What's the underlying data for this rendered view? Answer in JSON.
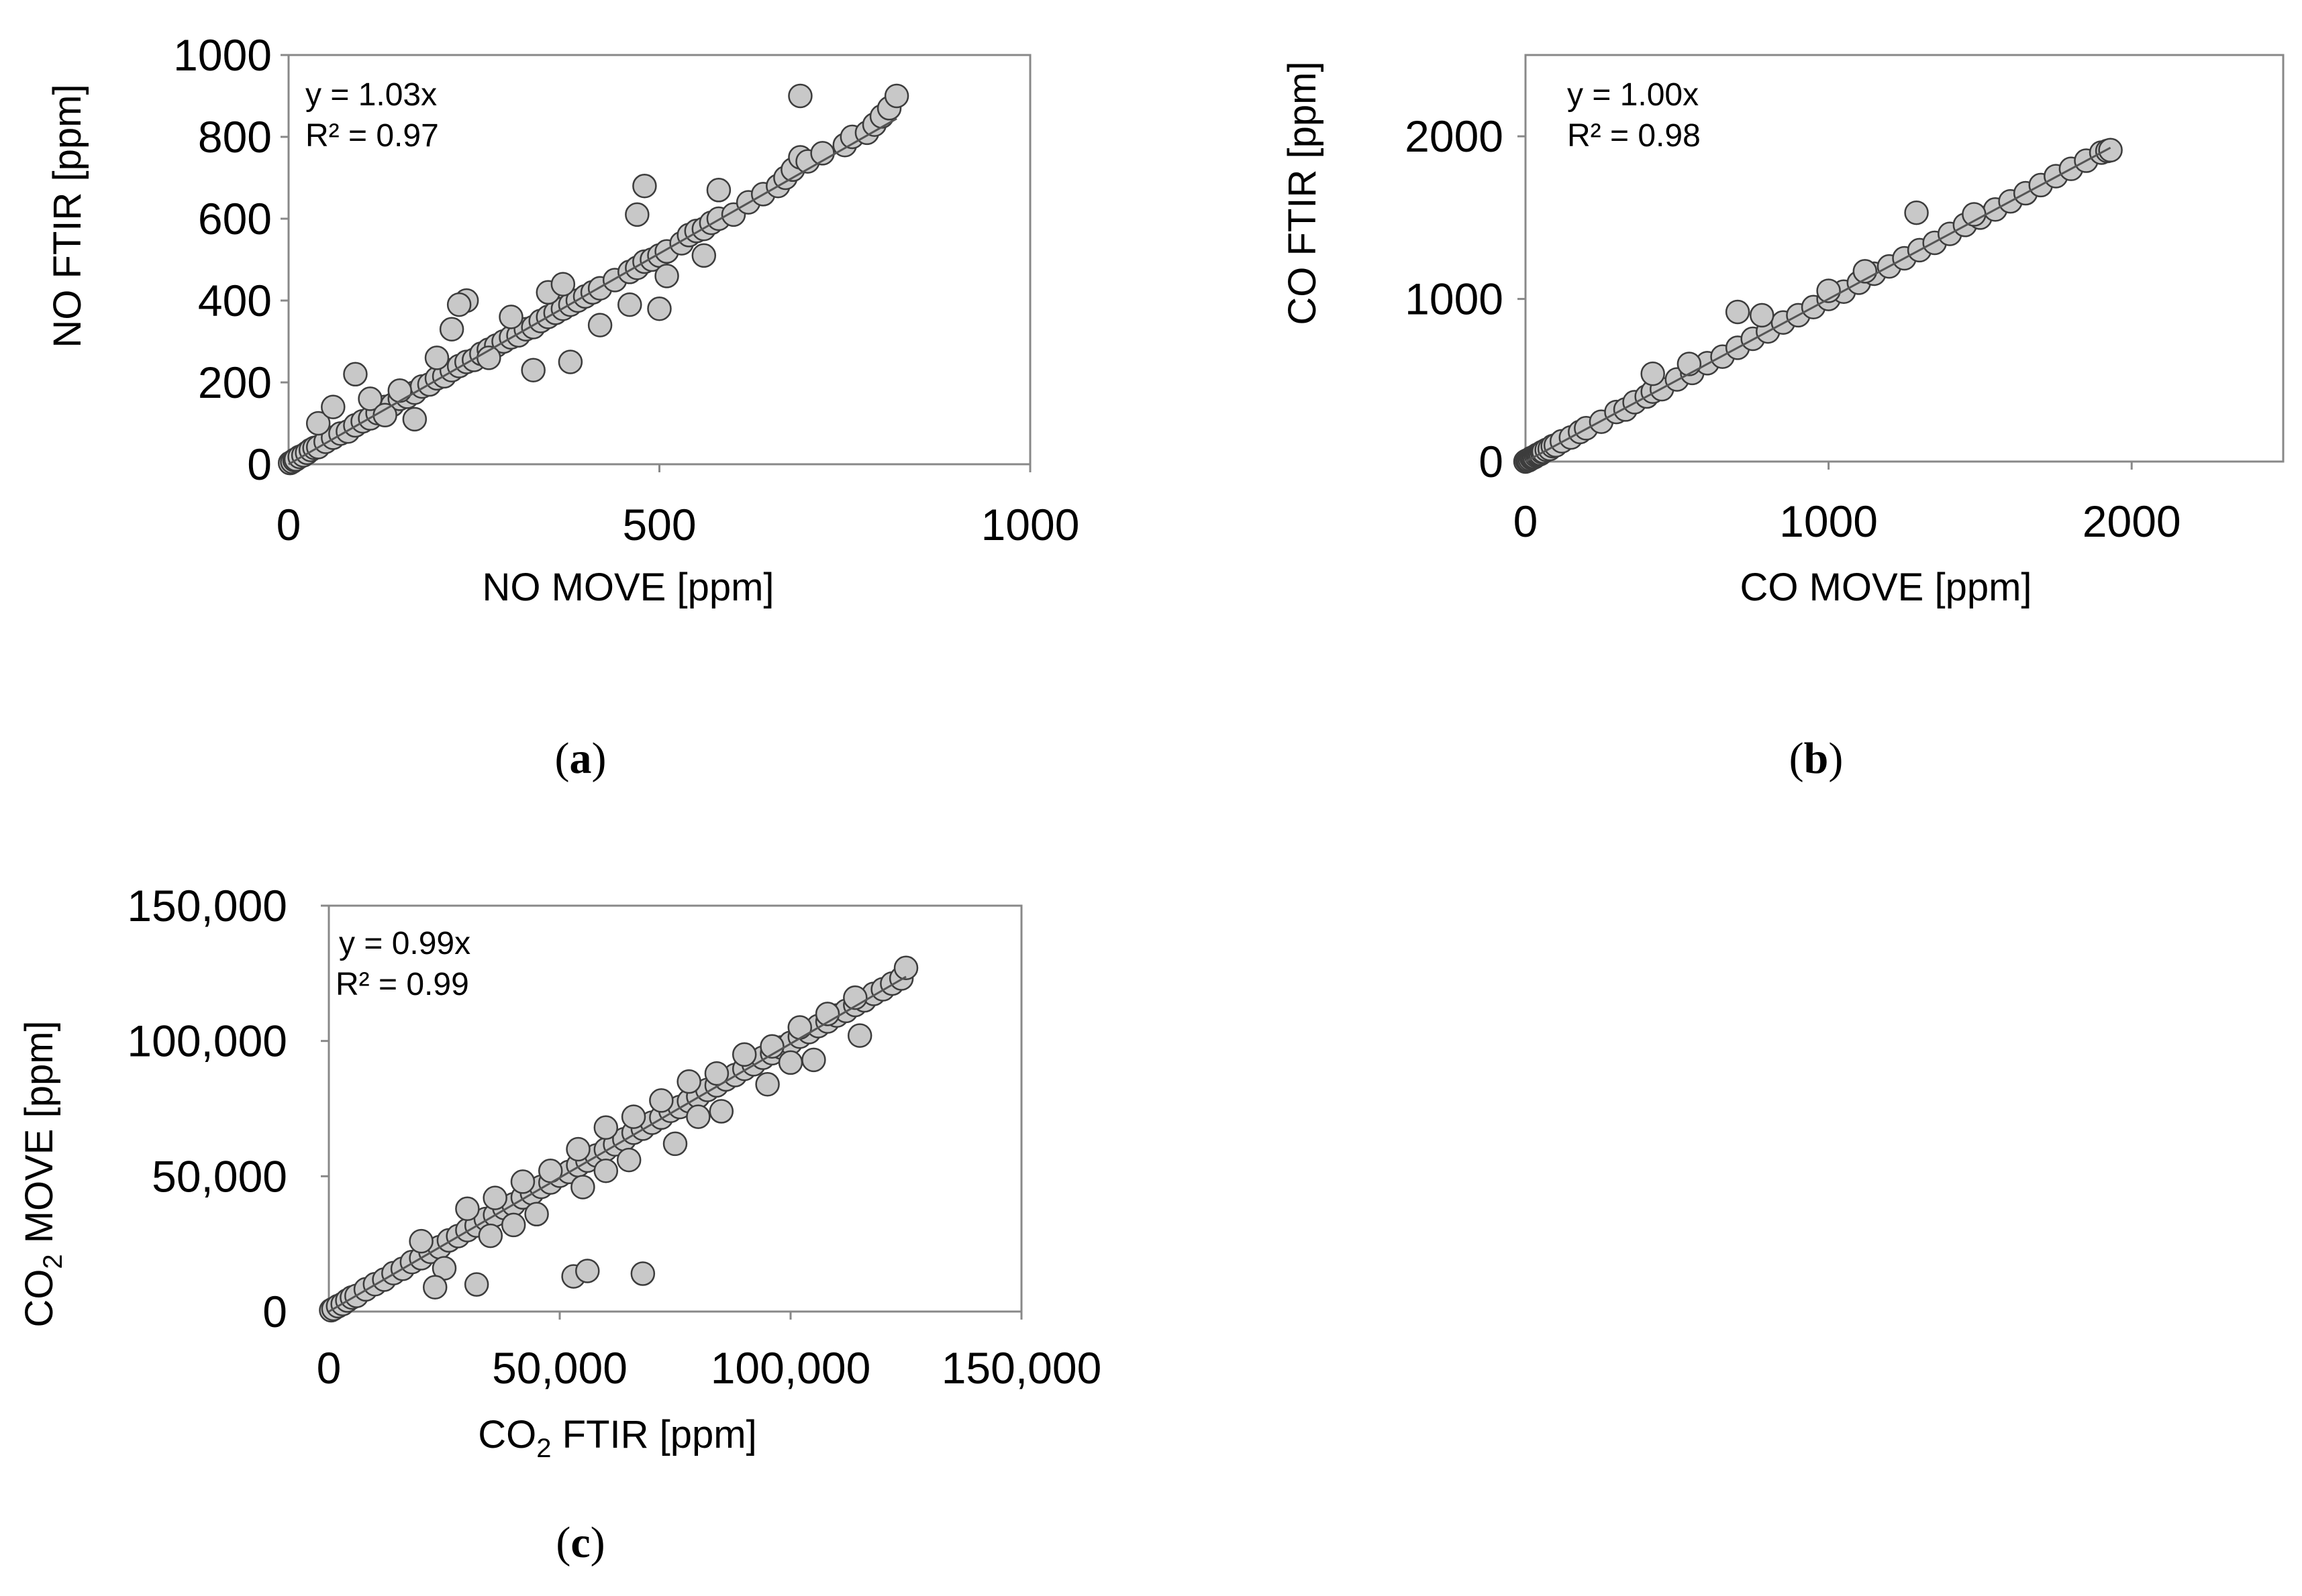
{
  "colors": {
    "marker_fill": "#c8c8c8",
    "marker_edge": "#3c3c3c",
    "frame": "#888888",
    "trend": "#555555"
  },
  "chart_data": [
    {
      "id": "a",
      "type": "scatter",
      "caption": "a",
      "xlabel": "NO MOVE [ppm]",
      "ylabel": "NO FTIR [ppm]",
      "equation": "y = 1.03x",
      "r2": "R² = 0.97",
      "slope": 1.03,
      "xlim": [
        0,
        1000
      ],
      "ylim": [
        0,
        1000
      ],
      "xticks": [
        0,
        500,
        1000
      ],
      "yticks": [
        0,
        200,
        400,
        600,
        800,
        1000
      ],
      "xtick_labels": [
        "0",
        "500",
        "1000"
      ],
      "ytick_labels": [
        "0",
        "200",
        "400",
        "600",
        "800",
        "1000"
      ],
      "x": [
        2,
        5,
        8,
        10,
        15,
        20,
        25,
        30,
        35,
        40,
        50,
        60,
        70,
        80,
        90,
        100,
        110,
        120,
        130,
        140,
        150,
        160,
        170,
        180,
        190,
        200,
        210,
        220,
        230,
        240,
        250,
        260,
        270,
        280,
        290,
        300,
        310,
        320,
        330,
        340,
        350,
        360,
        370,
        380,
        390,
        400,
        410,
        420,
        440,
        460,
        470,
        480,
        490,
        500,
        510,
        530,
        540,
        550,
        560,
        570,
        580,
        600,
        620,
        640,
        660,
        670,
        680,
        690,
        700,
        720,
        750,
        760,
        780,
        790,
        800,
        810,
        820,
        40,
        60,
        90,
        110,
        130,
        150,
        170,
        200,
        220,
        240,
        270,
        300,
        330,
        350,
        380,
        420,
        460,
        500,
        560,
        690,
        480,
        230,
        370,
        510,
        470,
        580
      ],
      "y": [
        3,
        6,
        10,
        12,
        18,
        22,
        28,
        35,
        40,
        42,
        55,
        65,
        75,
        80,
        95,
        105,
        112,
        125,
        140,
        145,
        160,
        165,
        175,
        190,
        195,
        210,
        215,
        230,
        240,
        250,
        255,
        270,
        280,
        290,
        300,
        310,
        315,
        330,
        335,
        350,
        360,
        370,
        380,
        390,
        400,
        410,
        420,
        430,
        450,
        470,
        480,
        495,
        500,
        510,
        520,
        540,
        560,
        570,
        575,
        590,
        600,
        610,
        640,
        660,
        680,
        700,
        720,
        750,
        740,
        760,
        780,
        800,
        810,
        830,
        850,
        870,
        900,
        100,
        140,
        220,
        160,
        120,
        180,
        110,
        260,
        330,
        400,
        260,
        360,
        230,
        420,
        250,
        340,
        390,
        380,
        510,
        900,
        680,
        390,
        440,
        460,
        610,
        670
      ]
    },
    {
      "id": "b",
      "type": "scatter",
      "caption": "b",
      "xlabel": "CO MOVE [ppm]",
      "ylabel": "CO FTIR [ppm]",
      "equation": "y = 1.00x",
      "r2": "R² = 0.98",
      "slope": 1.0,
      "xlim": [
        0,
        2500
      ],
      "ylim": [
        0,
        2500
      ],
      "xticks": [
        0,
        1000,
        2000
      ],
      "yticks": [
        0,
        1000,
        2000
      ],
      "xtick_labels": [
        "0",
        "1000",
        "2000"
      ],
      "ytick_labels": [
        "0",
        "1000",
        "2000"
      ],
      "x": [
        0,
        5,
        10,
        15,
        20,
        25,
        30,
        35,
        40,
        45,
        50,
        55,
        60,
        70,
        80,
        90,
        100,
        120,
        150,
        180,
        200,
        250,
        300,
        330,
        360,
        400,
        420,
        450,
        500,
        550,
        600,
        650,
        700,
        750,
        800,
        850,
        900,
        950,
        1000,
        1050,
        1100,
        1150,
        1200,
        1250,
        1300,
        1350,
        1400,
        1450,
        1500,
        1550,
        1600,
        1650,
        1700,
        1750,
        1800,
        1850,
        1900,
        1920,
        1930,
        700,
        420,
        1290,
        780,
        540,
        1000,
        1120,
        1480
      ],
      "y": [
        0,
        6,
        8,
        14,
        22,
        24,
        28,
        36,
        42,
        44,
        48,
        58,
        62,
        72,
        78,
        95,
        100,
        125,
        148,
        182,
        205,
        245,
        305,
        320,
        365,
        400,
        430,
        445,
        505,
        545,
        605,
        645,
        700,
        755,
        800,
        855,
        900,
        950,
        1000,
        1045,
        1100,
        1155,
        1200,
        1250,
        1300,
        1345,
        1400,
        1455,
        1500,
        1550,
        1600,
        1650,
        1700,
        1755,
        1800,
        1850,
        1900,
        1910,
        1915,
        920,
        540,
        1530,
        900,
        600,
        1050,
        1170,
        1520
      ]
    },
    {
      "id": "c",
      "type": "scatter",
      "caption": "c",
      "xlabel_main": "CO",
      "xlabel_sub": "2",
      "xlabel_rest": " FTIR [ppm]",
      "ylabel_main": "CO",
      "ylabel_sub": "2",
      "ylabel_rest": " MOVE [ppm]",
      "equation": "y = 0.99x",
      "r2": "R² = 0.99",
      "slope": 0.99,
      "xlim": [
        0,
        150000
      ],
      "ylim": [
        0,
        150000
      ],
      "xticks": [
        0,
        50000,
        100000,
        150000
      ],
      "yticks": [
        0,
        50000,
        100000,
        150000
      ],
      "xtick_labels": [
        "0",
        "50,000",
        "100,000",
        "150,000"
      ],
      "ytick_labels": [
        "0",
        "50,000",
        "100,000",
        "150,000"
      ],
      "x": [
        500,
        1000,
        2000,
        3000,
        4000,
        5000,
        6000,
        8000,
        10000,
        12000,
        14000,
        16000,
        18000,
        20000,
        22000,
        24000,
        26000,
        28000,
        30000,
        32000,
        34000,
        36000,
        38000,
        40000,
        42000,
        44000,
        46000,
        48000,
        50000,
        52000,
        54000,
        56000,
        58000,
        60000,
        62000,
        64000,
        66000,
        68000,
        70000,
        72000,
        74000,
        76000,
        78000,
        80000,
        82000,
        84000,
        86000,
        88000,
        90000,
        92000,
        94000,
        96000,
        98000,
        100000,
        102000,
        104000,
        106000,
        108000,
        110000,
        112000,
        114000,
        116000,
        118000,
        120000,
        122000,
        124000,
        125000,
        30000,
        36000,
        42000,
        48000,
        54000,
        60000,
        66000,
        72000,
        78000,
        84000,
        90000,
        96000,
        102000,
        108000,
        114000,
        25000,
        35000,
        45000,
        55000,
        65000,
        75000,
        85000,
        95000,
        105000,
        115000,
        20000,
        40000,
        60000,
        80000,
        100000,
        53000,
        56000,
        68000,
        32000,
        23000
      ],
      "y": [
        500,
        1000,
        2000,
        2800,
        4100,
        5200,
        5800,
        8200,
        10100,
        11800,
        14200,
        15800,
        18300,
        19700,
        22100,
        23800,
        26300,
        27900,
        30100,
        31800,
        34200,
        35700,
        38300,
        39600,
        42200,
        43800,
        46100,
        47700,
        50200,
        51600,
        54100,
        55800,
        57700,
        59900,
        61800,
        63700,
        66100,
        67600,
        69800,
        71700,
        74200,
        75600,
        77800,
        79500,
        81900,
        83600,
        85800,
        87400,
        89700,
        91400,
        93800,
        95500,
        97600,
        99300,
        101600,
        103300,
        105500,
        107200,
        109400,
        111100,
        113300,
        115000,
        117400,
        119100,
        121200,
        123100,
        127000,
        38000,
        42000,
        48000,
        52000,
        60000,
        68000,
        72000,
        78000,
        85000,
        88000,
        95000,
        98000,
        105000,
        110000,
        116000,
        16000,
        28000,
        36000,
        46000,
        56000,
        62000,
        74000,
        84000,
        93000,
        102000,
        26000,
        32000,
        52000,
        72000,
        92000,
        13000,
        15000,
        14000,
        10000,
        9000
      ]
    }
  ]
}
